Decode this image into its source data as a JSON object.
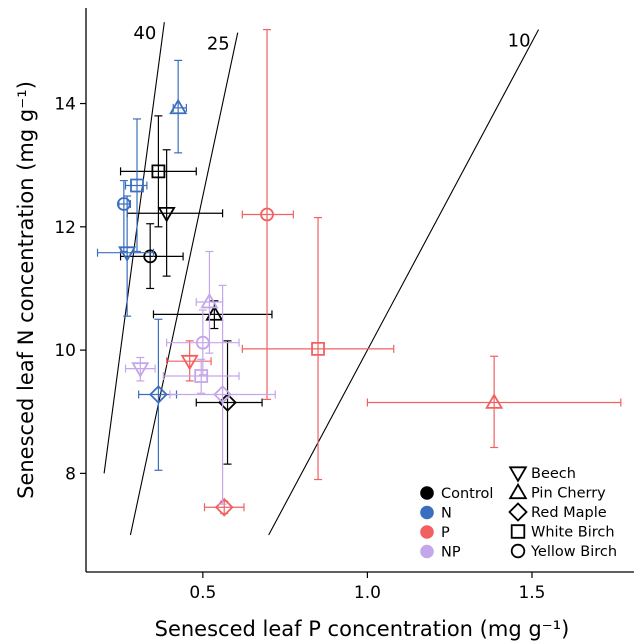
{
  "chart_data": {
    "type": "scatter",
    "xlabel": "Senesced leaf P concentration (mg g⁻¹)",
    "ylabel": "Senesced leaf N concentration (mg g⁻¹)",
    "xlim": [
      0.145,
      1.81
    ],
    "ylim": [
      6.4,
      15.55
    ],
    "xticks": [
      0.5,
      1.0,
      1.5
    ],
    "xtick_labels": [
      "0.5",
      "1.0",
      "1.5"
    ],
    "yticks": [
      8,
      10,
      12,
      14
    ],
    "ytick_labels": [
      "8",
      "10",
      "12",
      "14"
    ],
    "grid": false,
    "legend_position": "bottom-right",
    "treatments": [
      {
        "name": "Control",
        "color": "#000000"
      },
      {
        "name": "N",
        "color": "#3a6fc0"
      },
      {
        "name": "P",
        "color": "#f26060"
      },
      {
        "name": "NP",
        "color": "#c4a6ea"
      }
    ],
    "species": [
      {
        "name": "Beech",
        "marker": "triangle-down"
      },
      {
        "name": "Pin Cherry",
        "marker": "triangle-up"
      },
      {
        "name": "Red Maple",
        "marker": "diamond"
      },
      {
        "name": "White Birch",
        "marker": "square"
      },
      {
        "name": "Yellow Birch",
        "marker": "circle"
      }
    ],
    "ratio_lines": [
      {
        "label": "40",
        "ratio": 40,
        "x_range": [
          0.2,
          0.383
        ]
      },
      {
        "label": "25",
        "ratio": 25,
        "x_range": [
          0.28,
          0.606
        ]
      },
      {
        "label": "10",
        "ratio": 10,
        "x_range": [
          0.7,
          1.52
        ]
      }
    ],
    "points": [
      {
        "treatment": "Control",
        "species": "Beech",
        "x": 0.39,
        "y": 12.22,
        "xerr": [
          0.27,
          0.56
        ],
        "yerr": [
          11.2,
          13.25
        ]
      },
      {
        "treatment": "Control",
        "species": "Pin Cherry",
        "x": 0.535,
        "y": 10.58,
        "xerr": [
          0.35,
          0.71
        ],
        "yerr": [
          10.35,
          10.8
        ]
      },
      {
        "treatment": "Control",
        "species": "Red Maple",
        "x": 0.575,
        "y": 9.15,
        "xerr": [
          0.48,
          0.68
        ],
        "yerr": [
          8.15,
          10.15
        ]
      },
      {
        "treatment": "Control",
        "species": "White Birch",
        "x": 0.365,
        "y": 12.9,
        "xerr": [
          0.25,
          0.48
        ],
        "yerr": [
          12.0,
          13.8
        ]
      },
      {
        "treatment": "Control",
        "species": "Yellow Birch",
        "x": 0.34,
        "y": 11.52,
        "xerr": [
          0.25,
          0.44
        ],
        "yerr": [
          11.0,
          12.05
        ]
      },
      {
        "treatment": "N",
        "species": "Beech",
        "x": 0.27,
        "y": 11.58,
        "xerr": [
          0.18,
          0.35
        ],
        "yerr": [
          10.55,
          12.5
        ]
      },
      {
        "treatment": "N",
        "species": "Pin Cherry",
        "x": 0.425,
        "y": 13.93,
        "xerr": [
          0.41,
          0.45
        ],
        "yerr": [
          13.2,
          14.7
        ]
      },
      {
        "treatment": "N",
        "species": "Red Maple",
        "x": 0.365,
        "y": 9.28,
        "xerr": [
          0.305,
          0.42
        ],
        "yerr": [
          8.05,
          10.5
        ]
      },
      {
        "treatment": "N",
        "species": "White Birch",
        "x": 0.3,
        "y": 12.67,
        "xerr": [
          0.265,
          0.33
        ],
        "yerr": [
          11.6,
          13.75
        ]
      },
      {
        "treatment": "N",
        "species": "Yellow Birch",
        "x": 0.26,
        "y": 12.37,
        "xerr": [
          0.245,
          0.28
        ],
        "yerr": [
          11.6,
          12.75
        ]
      },
      {
        "treatment": "P",
        "species": "Beech",
        "x": 0.46,
        "y": 9.82,
        "xerr": [
          0.39,
          0.525
        ],
        "yerr": [
          9.5,
          10.15
        ]
      },
      {
        "treatment": "P",
        "species": "Pin Cherry",
        "x": 1.385,
        "y": 9.15,
        "xerr": [
          1.0,
          1.77
        ],
        "yerr": [
          8.42,
          9.9
        ]
      },
      {
        "treatment": "P",
        "species": "Red Maple",
        "x": 0.565,
        "y": 7.45,
        "xerr": [
          0.505,
          0.625
        ],
        "yerr": [
          7.35,
          7.55
        ]
      },
      {
        "treatment": "P",
        "species": "White Birch",
        "x": 0.85,
        "y": 10.02,
        "xerr": [
          0.62,
          1.08
        ],
        "yerr": [
          7.9,
          12.15
        ]
      },
      {
        "treatment": "P",
        "species": "Yellow Birch",
        "x": 0.695,
        "y": 12.2,
        "xerr": [
          0.62,
          0.775
        ],
        "yerr": [
          9.2,
          15.2
        ]
      },
      {
        "treatment": "NP",
        "species": "Beech",
        "x": 0.31,
        "y": 9.7,
        "xerr": [
          0.265,
          0.355
        ],
        "yerr": [
          9.5,
          9.88
        ]
      },
      {
        "treatment": "NP",
        "species": "Pin Cherry",
        "x": 0.52,
        "y": 10.78,
        "xerr": [
          0.48,
          0.56
        ],
        "yerr": [
          9.95,
          11.6
        ]
      },
      {
        "treatment": "NP",
        "species": "Red Maple",
        "x": 0.56,
        "y": 9.28,
        "xerr": [
          0.4,
          0.72
        ],
        "yerr": [
          7.5,
          11.05
        ]
      },
      {
        "treatment": "NP",
        "species": "White Birch",
        "x": 0.495,
        "y": 9.58,
        "xerr": [
          0.38,
          0.61
        ],
        "yerr": [
          9.3,
          9.85
        ]
      },
      {
        "treatment": "NP",
        "species": "Yellow Birch",
        "x": 0.5,
        "y": 10.12,
        "xerr": [
          0.39,
          0.61
        ],
        "yerr": [
          9.6,
          10.65
        ]
      }
    ]
  }
}
